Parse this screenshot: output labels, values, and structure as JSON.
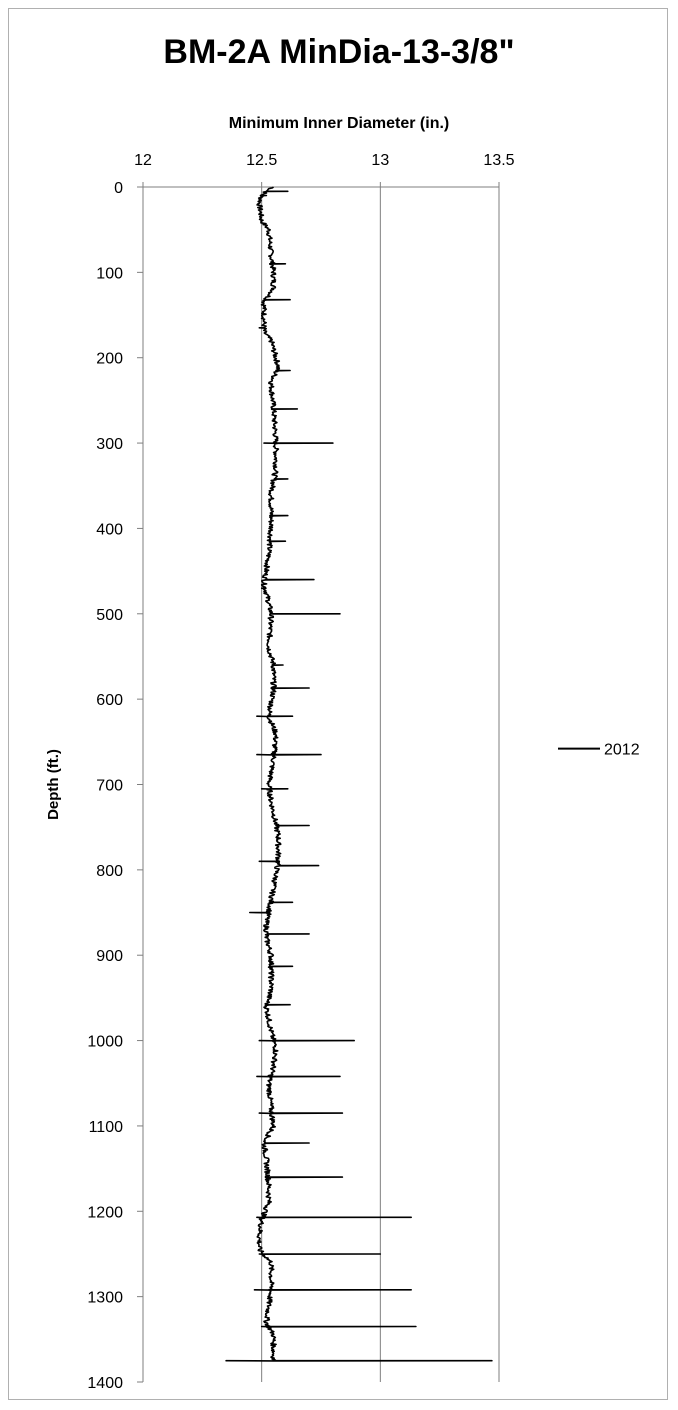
{
  "chart_data": {
    "type": "line",
    "title": "BM-2A MinDia-13-3/8\"",
    "xlabel": "Minimum Inner Diameter (in.)",
    "ylabel": "Depth (ft.)",
    "x_axis_position": "top",
    "xlim": [
      12,
      13.5
    ],
    "x_ticks": [
      "12",
      "12.5",
      "13",
      "13.5"
    ],
    "ylim": [
      0,
      1400
    ],
    "y_inverted": true,
    "y_ticks": [
      "0",
      "100",
      "200",
      "300",
      "400",
      "500",
      "600",
      "700",
      "800",
      "900",
      "1000",
      "1100",
      "1200",
      "1300",
      "1400"
    ],
    "grid": "vertical",
    "legend": "right",
    "series": [
      {
        "name": "2012",
        "color": "#000000",
        "baseline": [
          [
            0,
            12.55
          ],
          [
            5,
            12.52
          ],
          [
            10,
            12.5
          ],
          [
            20,
            12.49
          ],
          [
            40,
            12.5
          ],
          [
            50,
            12.53
          ],
          [
            80,
            12.54
          ],
          [
            100,
            12.55
          ],
          [
            120,
            12.55
          ],
          [
            135,
            12.51
          ],
          [
            170,
            12.51
          ],
          [
            180,
            12.54
          ],
          [
            210,
            12.57
          ],
          [
            230,
            12.54
          ],
          [
            260,
            12.55
          ],
          [
            300,
            12.56
          ],
          [
            330,
            12.56
          ],
          [
            360,
            12.54
          ],
          [
            400,
            12.54
          ],
          [
            430,
            12.53
          ],
          [
            465,
            12.51
          ],
          [
            475,
            12.52
          ],
          [
            500,
            12.54
          ],
          [
            540,
            12.53
          ],
          [
            560,
            12.55
          ],
          [
            590,
            12.55
          ],
          [
            620,
            12.53
          ],
          [
            640,
            12.56
          ],
          [
            670,
            12.55
          ],
          [
            700,
            12.53
          ],
          [
            720,
            12.54
          ],
          [
            760,
            12.57
          ],
          [
            790,
            12.57
          ],
          [
            820,
            12.55
          ],
          [
            850,
            12.53
          ],
          [
            860,
            12.52
          ],
          [
            880,
            12.52
          ],
          [
            900,
            12.54
          ],
          [
            940,
            12.54
          ],
          [
            960,
            12.52
          ],
          [
            990,
            12.54
          ],
          [
            1010,
            12.56
          ],
          [
            1030,
            12.55
          ],
          [
            1050,
            12.53
          ],
          [
            1080,
            12.54
          ],
          [
            1100,
            12.55
          ],
          [
            1120,
            12.51
          ],
          [
            1140,
            12.52
          ],
          [
            1170,
            12.53
          ],
          [
            1190,
            12.53
          ],
          [
            1210,
            12.5
          ],
          [
            1230,
            12.49
          ],
          [
            1245,
            12.49
          ],
          [
            1260,
            12.54
          ],
          [
            1290,
            12.54
          ],
          [
            1310,
            12.53
          ],
          [
            1330,
            12.52
          ],
          [
            1345,
            12.55
          ],
          [
            1370,
            12.55
          ],
          [
            1375,
            12.55
          ]
        ],
        "spikes": [
          [
            5,
            12.61
          ],
          [
            10,
            12.52
          ],
          [
            90,
            12.6
          ],
          [
            132,
            12.62
          ],
          [
            165,
            12.49
          ],
          [
            215,
            12.62
          ],
          [
            260,
            12.65
          ],
          [
            300,
            12.8
          ],
          [
            300,
            12.51
          ],
          [
            342,
            12.61
          ],
          [
            385,
            12.61
          ],
          [
            415,
            12.6
          ],
          [
            460,
            12.72
          ],
          [
            470,
            12.5
          ],
          [
            500,
            12.83
          ],
          [
            560,
            12.59
          ],
          [
            587,
            12.7
          ],
          [
            620,
            12.63
          ],
          [
            620,
            12.48
          ],
          [
            665,
            12.75
          ],
          [
            665,
            12.48
          ],
          [
            705,
            12.61
          ],
          [
            705,
            12.5
          ],
          [
            748,
            12.7
          ],
          [
            795,
            12.74
          ],
          [
            790,
            12.49
          ],
          [
            838,
            12.63
          ],
          [
            850,
            12.45
          ],
          [
            875,
            12.7
          ],
          [
            913,
            12.63
          ],
          [
            958,
            12.62
          ],
          [
            1000,
            12.89
          ],
          [
            1000,
            12.49
          ],
          [
            1042,
            12.83
          ],
          [
            1042,
            12.48
          ],
          [
            1085,
            12.84
          ],
          [
            1085,
            12.49
          ],
          [
            1120,
            12.7
          ],
          [
            1160,
            12.84
          ],
          [
            1207,
            13.13
          ],
          [
            1207,
            12.48
          ],
          [
            1250,
            13.0
          ],
          [
            1250,
            12.49
          ],
          [
            1292,
            13.13
          ],
          [
            1292,
            12.47
          ],
          [
            1335,
            13.15
          ],
          [
            1335,
            12.5
          ],
          [
            1375,
            13.47
          ],
          [
            1375,
            12.35
          ]
        ]
      }
    ]
  }
}
